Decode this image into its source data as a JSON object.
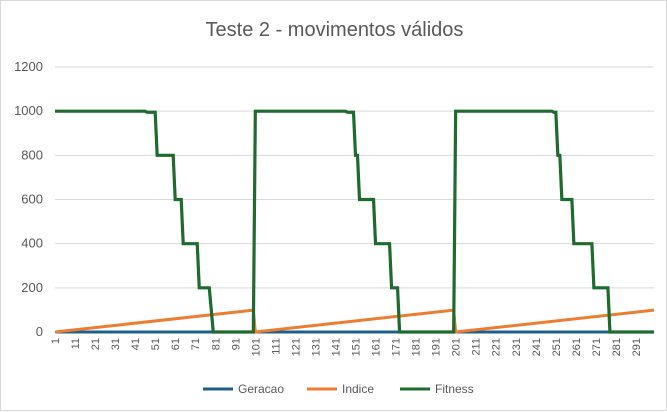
{
  "chart_data": {
    "type": "line",
    "title": "Teste 2 - movimentos válidos",
    "xlabel": "",
    "ylabel": "",
    "ylim": [
      0,
      1200
    ],
    "y_ticks": [
      0,
      200,
      400,
      600,
      800,
      1000,
      1200
    ],
    "x_range": [
      1,
      300
    ],
    "x_tick_labels": [
      "1",
      "11",
      "21",
      "31",
      "41",
      "51",
      "61",
      "71",
      "81",
      "91",
      "101",
      "111",
      "121",
      "131",
      "141",
      "151",
      "161",
      "171",
      "181",
      "191",
      "201",
      "211",
      "221",
      "231",
      "241",
      "251",
      "261",
      "271",
      "281",
      "291"
    ],
    "grid": "horizontal",
    "legend_position": "bottom",
    "series": [
      {
        "name": "Geracao",
        "color": "#1f5f8b",
        "points": [
          [
            1,
            0
          ],
          [
            300,
            0
          ]
        ]
      },
      {
        "name": "Indice",
        "color": "#ed7d31",
        "points": [
          [
            1,
            0
          ],
          [
            100,
            99
          ],
          [
            101,
            0
          ],
          [
            200,
            99
          ],
          [
            201,
            0
          ],
          [
            300,
            99
          ]
        ]
      },
      {
        "name": "Fitness",
        "color": "#1e6b2e",
        "points": [
          [
            1,
            1000
          ],
          [
            46,
            1000
          ],
          [
            47,
            995
          ],
          [
            51,
            995
          ],
          [
            52,
            800
          ],
          [
            60,
            800
          ],
          [
            61,
            600
          ],
          [
            64,
            600
          ],
          [
            65,
            400
          ],
          [
            72,
            400
          ],
          [
            73,
            200
          ],
          [
            78,
            200
          ],
          [
            80,
            0
          ],
          [
            100,
            0
          ],
          [
            101,
            1000
          ],
          [
            146,
            1000
          ],
          [
            147,
            995
          ],
          [
            150,
            995
          ],
          [
            151,
            800
          ],
          [
            152,
            800
          ],
          [
            153,
            600
          ],
          [
            160,
            600
          ],
          [
            161,
            400
          ],
          [
            168,
            400
          ],
          [
            169,
            200
          ],
          [
            172,
            200
          ],
          [
            173,
            0
          ],
          [
            200,
            0
          ],
          [
            201,
            1000
          ],
          [
            249,
            1000
          ],
          [
            250,
            995
          ],
          [
            251,
            995
          ],
          [
            252,
            800
          ],
          [
            253,
            800
          ],
          [
            254,
            600
          ],
          [
            259,
            600
          ],
          [
            260,
            400
          ],
          [
            269,
            400
          ],
          [
            270,
            200
          ],
          [
            277,
            200
          ],
          [
            278,
            0
          ],
          [
            300,
            0
          ]
        ]
      }
    ]
  }
}
